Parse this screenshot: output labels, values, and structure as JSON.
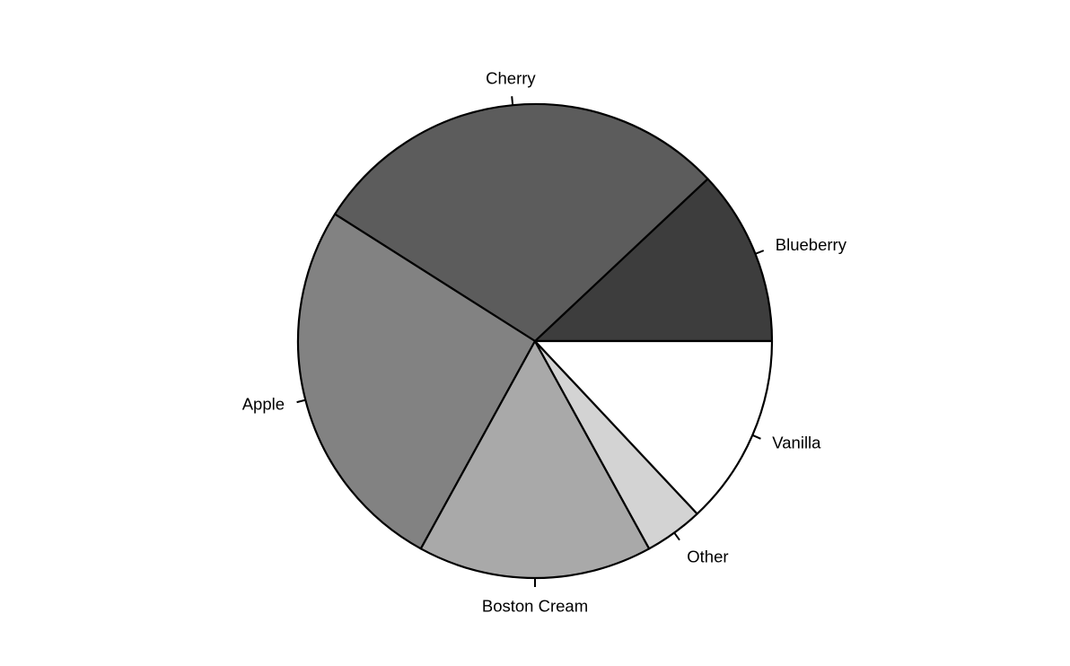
{
  "chart_data": {
    "type": "pie",
    "title": "",
    "start_angle_deg": 0,
    "direction": "counterclockwise",
    "legend": "none",
    "slices": [
      {
        "label": "Blueberry",
        "value": 0.12,
        "color": "#3d3d3d"
      },
      {
        "label": "Cherry",
        "value": 0.29,
        "color": "#5c5c5c"
      },
      {
        "label": "Apple",
        "value": 0.26,
        "color": "#828282"
      },
      {
        "label": "Boston Cream",
        "value": 0.16,
        "color": "#a9a9a9"
      },
      {
        "label": "Other",
        "value": 0.04,
        "color": "#d3d3d3"
      },
      {
        "label": "Vanilla",
        "value": 0.13,
        "color": "#ffffff"
      }
    ]
  }
}
